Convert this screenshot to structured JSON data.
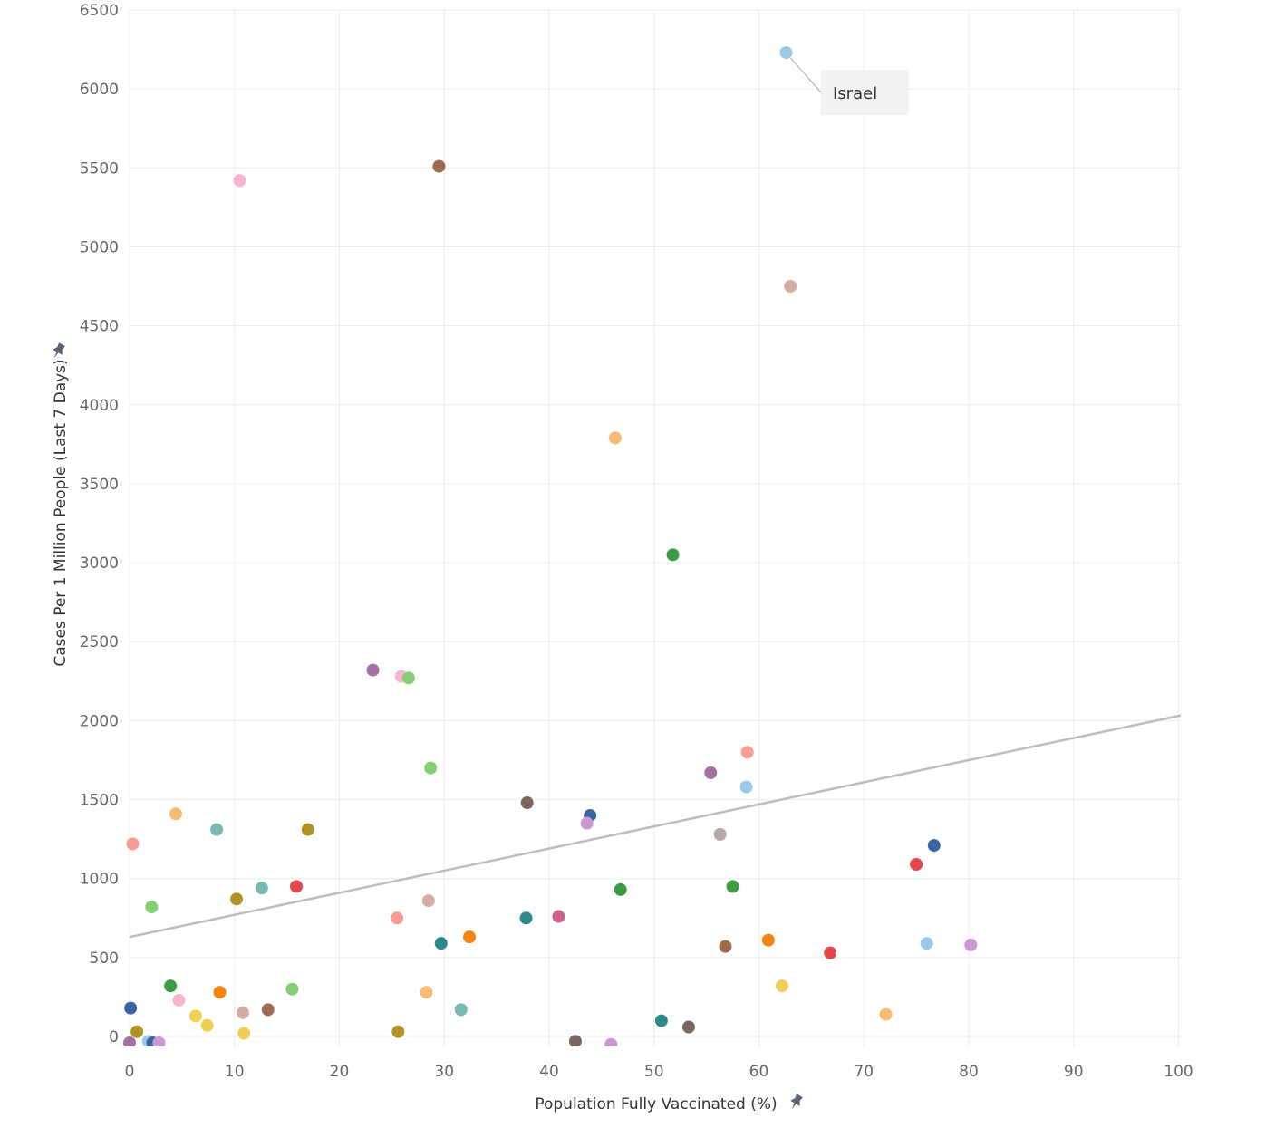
{
  "chart_data": {
    "type": "scatter",
    "xlabel": "Population Fully Vaccinated (%)",
    "ylabel": "Cases Per 1 Million People (Last 7 Days)",
    "xlim": [
      0,
      100
    ],
    "ylim": [
      0,
      6500
    ],
    "x_ticks": [
      0,
      10,
      20,
      30,
      40,
      50,
      60,
      70,
      80,
      90,
      100
    ],
    "y_ticks": [
      0,
      500,
      1000,
      1500,
      2000,
      2500,
      3000,
      3500,
      4000,
      4500,
      5000,
      5500,
      6000,
      6500
    ],
    "grid": true,
    "trend_line": {
      "x": [
        0,
        100
      ],
      "y": [
        630,
        2030
      ]
    },
    "annotation": {
      "text": "Israel",
      "x": 62.6,
      "y": 6230
    },
    "pin_icon": "pin-icon",
    "points": [
      {
        "x": 62.6,
        "y": 6230,
        "color": "#9ec8ea"
      },
      {
        "x": 29.5,
        "y": 5510,
        "color": "#9c6b52"
      },
      {
        "x": 10.5,
        "y": 5420,
        "color": "#f7b6cf"
      },
      {
        "x": 63.0,
        "y": 4750,
        "color": "#d5aea3"
      },
      {
        "x": 46.3,
        "y": 3790,
        "color": "#f9bb74"
      },
      {
        "x": 51.8,
        "y": 3050,
        "color": "#3c9b45"
      },
      {
        "x": 23.2,
        "y": 2320,
        "color": "#a56fa5"
      },
      {
        "x": 25.9,
        "y": 2280,
        "color": "#f7b6cf"
      },
      {
        "x": 26.6,
        "y": 2270,
        "color": "#84cf72"
      },
      {
        "x": 28.7,
        "y": 1700,
        "color": "#84cf72"
      },
      {
        "x": 58.9,
        "y": 1800,
        "color": "#f79d92"
      },
      {
        "x": 55.4,
        "y": 1670,
        "color": "#a56fa5"
      },
      {
        "x": 58.8,
        "y": 1580,
        "color": "#9ec8ea"
      },
      {
        "x": 37.9,
        "y": 1480,
        "color": "#7a6560"
      },
      {
        "x": 43.9,
        "y": 1400,
        "color": "#3c64a0"
      },
      {
        "x": 43.6,
        "y": 1350,
        "color": "#c99ad0"
      },
      {
        "x": 56.3,
        "y": 1280,
        "color": "#b5aaa8"
      },
      {
        "x": 0.3,
        "y": 1220,
        "color": "#f79d92"
      },
      {
        "x": 4.4,
        "y": 1410,
        "color": "#f9bb74"
      },
      {
        "x": 8.3,
        "y": 1310,
        "color": "#7ab8b3"
      },
      {
        "x": 17.0,
        "y": 1310,
        "color": "#b09326"
      },
      {
        "x": 76.7,
        "y": 1210,
        "color": "#3c64a0"
      },
      {
        "x": 75.0,
        "y": 1090,
        "color": "#e0484c"
      },
      {
        "x": 2.1,
        "y": 820,
        "color": "#84cf72"
      },
      {
        "x": 10.2,
        "y": 870,
        "color": "#b09326"
      },
      {
        "x": 12.6,
        "y": 940,
        "color": "#7ab8b3"
      },
      {
        "x": 15.9,
        "y": 950,
        "color": "#e0484c"
      },
      {
        "x": 28.5,
        "y": 860,
        "color": "#d5aea3"
      },
      {
        "x": 46.8,
        "y": 930,
        "color": "#3c9b45"
      },
      {
        "x": 57.5,
        "y": 950,
        "color": "#3c9b45"
      },
      {
        "x": 25.5,
        "y": 750,
        "color": "#f79d92"
      },
      {
        "x": 37.8,
        "y": 750,
        "color": "#2d8a8a"
      },
      {
        "x": 40.9,
        "y": 760,
        "color": "#c9628c"
      },
      {
        "x": 29.7,
        "y": 590,
        "color": "#2d8a8a"
      },
      {
        "x": 32.4,
        "y": 630,
        "color": "#f4830f"
      },
      {
        "x": 56.8,
        "y": 570,
        "color": "#9c6b52"
      },
      {
        "x": 60.9,
        "y": 610,
        "color": "#f4830f"
      },
      {
        "x": 66.8,
        "y": 530,
        "color": "#e0484c"
      },
      {
        "x": 76.0,
        "y": 590,
        "color": "#9ec8ea"
      },
      {
        "x": 80.2,
        "y": 580,
        "color": "#c99ad0"
      },
      {
        "x": 0.1,
        "y": 180,
        "color": "#3c64a0"
      },
      {
        "x": 3.9,
        "y": 320,
        "color": "#3c9b45"
      },
      {
        "x": 4.7,
        "y": 230,
        "color": "#f7b6cf"
      },
      {
        "x": 8.6,
        "y": 280,
        "color": "#f4830f"
      },
      {
        "x": 15.5,
        "y": 300,
        "color": "#84cf72"
      },
      {
        "x": 28.3,
        "y": 280,
        "color": "#f9bb74"
      },
      {
        "x": 31.6,
        "y": 170,
        "color": "#7ab8b3"
      },
      {
        "x": 62.2,
        "y": 320,
        "color": "#f0cf55"
      },
      {
        "x": 72.1,
        "y": 140,
        "color": "#f9bb74"
      },
      {
        "x": 6.3,
        "y": 130,
        "color": "#f0cf55"
      },
      {
        "x": 7.4,
        "y": 70,
        "color": "#f0cf55"
      },
      {
        "x": 10.8,
        "y": 150,
        "color": "#d5aea3"
      },
      {
        "x": 13.2,
        "y": 170,
        "color": "#9c6b52"
      },
      {
        "x": 10.9,
        "y": 20,
        "color": "#f0cf55"
      },
      {
        "x": 25.6,
        "y": 30,
        "color": "#b09326"
      },
      {
        "x": 50.7,
        "y": 100,
        "color": "#2d8a8a"
      },
      {
        "x": 53.3,
        "y": 60,
        "color": "#7a6560"
      },
      {
        "x": 42.5,
        "y": -30,
        "color": "#7a6560"
      },
      {
        "x": 45.9,
        "y": -50,
        "color": "#c99ad0"
      },
      {
        "x": 0.0,
        "y": -40,
        "color": "#a56fa5"
      },
      {
        "x": 0.7,
        "y": 30,
        "color": "#b09326"
      },
      {
        "x": 1.8,
        "y": -30,
        "color": "#9ec8ea"
      },
      {
        "x": 2.2,
        "y": -40,
        "color": "#3c64a0"
      },
      {
        "x": 2.8,
        "y": -40,
        "color": "#c99ad0"
      }
    ]
  }
}
